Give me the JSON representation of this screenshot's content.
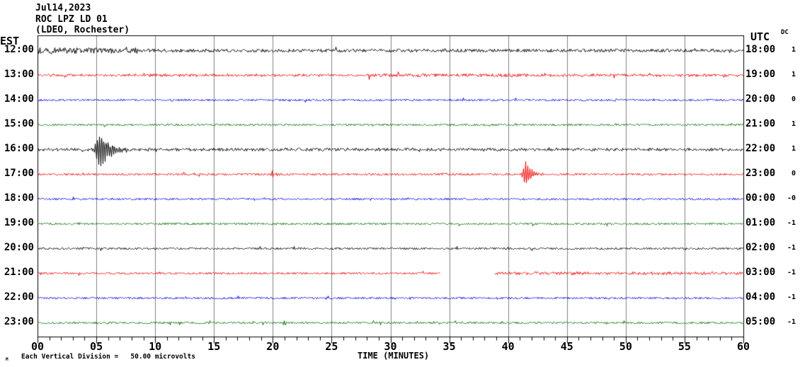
{
  "header": {
    "date": "Jul14,2023",
    "station": "ROC LPZ LD 01",
    "network": "(LDEO, Rochester)"
  },
  "axes": {
    "left_tz": "EST",
    "right_tz": "UTC",
    "dc_header": "DC",
    "xlabel": "TIME (MINUTES)"
  },
  "footer": {
    "corner_mark": "M",
    "scale_note": "Each Vertical Division =   50.00 microvolts"
  },
  "colors": {
    "frame": "#000000",
    "grid": "#808080",
    "black_trace": "#000000",
    "red_trace": "#ee0000",
    "blue_trace": "#0000dd",
    "green_trace": "#006e00"
  },
  "chart_data": {
    "type": "line",
    "title": "ROC LPZ LD 01 helicorder, Jul14,2023 (LDEO, Rochester)",
    "xlabel": "TIME (MINUTES)",
    "x_range": [
      0,
      60
    ],
    "x_ticks": [
      "00",
      "05",
      "10",
      "15",
      "20",
      "25",
      "30",
      "35",
      "40",
      "45",
      "50",
      "55",
      "60"
    ],
    "x_tick_minutes": [
      0,
      5,
      10,
      15,
      20,
      25,
      30,
      35,
      40,
      45,
      50,
      55,
      60
    ],
    "minor_tick_every_minutes": 1,
    "grid": "vertical-every-5-minutes",
    "vertical_division_microvolts": 50.0,
    "rows": [
      {
        "est": "12:00",
        "utc": "18:00",
        "dc": "1",
        "color": "#000000",
        "noise": 2.1,
        "noise_segments": [
          {
            "from": 0,
            "to": 8.5,
            "amp": 4.2
          }
        ],
        "events": [],
        "gaps": []
      },
      {
        "est": "13:00",
        "utc": "19:00",
        "dc": "1",
        "color": "#ee0000",
        "noise": 1.6,
        "noise_segments": [
          {
            "from": 28,
            "to": 41,
            "amp": 2.3
          }
        ],
        "events": [],
        "gaps": []
      },
      {
        "est": "14:00",
        "utc": "20:00",
        "dc": "0",
        "color": "#0000dd",
        "noise": 1.3,
        "noise_segments": [],
        "events": [],
        "gaps": []
      },
      {
        "est": "15:00",
        "utc": "21:00",
        "dc": "1",
        "color": "#006e00",
        "noise": 1.4,
        "noise_segments": [],
        "events": [],
        "gaps": []
      },
      {
        "est": "16:00",
        "utc": "22:00",
        "dc": "1",
        "color": "#000000",
        "noise": 1.9,
        "noise_segments": [],
        "events": [
          {
            "t": 5.3,
            "amp": 26,
            "attack": 0.28,
            "decay": 0.75,
            "freq": 5.5,
            "coda_amp": 3.0,
            "coda_len": 6.5
          }
        ],
        "gaps": []
      },
      {
        "est": "17:00",
        "utc": "23:00",
        "dc": "0",
        "color": "#ee0000",
        "noise": 1.4,
        "noise_segments": [],
        "events": [
          {
            "t": 19.95,
            "amp": 7,
            "attack": 0.08,
            "decay": 0.12,
            "freq": 5.5,
            "coda_amp": 0,
            "coda_len": 0
          },
          {
            "t": 41.5,
            "amp": 18,
            "attack": 0.2,
            "decay": 0.45,
            "freq": 5.5,
            "coda_amp": 1.2,
            "coda_len": 2.5
          }
        ],
        "gaps": []
      },
      {
        "est": "18:00",
        "utc": "00:00",
        "dc": "-0",
        "color": "#0000dd",
        "noise": 1.2,
        "noise_segments": [],
        "events": [],
        "gaps": []
      },
      {
        "est": "19:00",
        "utc": "01:00",
        "dc": "-1",
        "color": "#006e00",
        "noise": 1.4,
        "noise_segments": [],
        "events": [],
        "gaps": []
      },
      {
        "est": "20:00",
        "utc": "02:00",
        "dc": "-1",
        "color": "#000000",
        "noise": 1.5,
        "noise_segments": [],
        "events": [],
        "gaps": []
      },
      {
        "est": "21:00",
        "utc": "03:00",
        "dc": "-1",
        "color": "#ee0000",
        "noise": 1.4,
        "noise_segments": [
          {
            "from": 38.8,
            "to": 60,
            "amp": 1.9
          }
        ],
        "events": [],
        "gaps": [
          [
            34.2,
            38.8
          ]
        ]
      },
      {
        "est": "22:00",
        "utc": "04:00",
        "dc": "-1",
        "color": "#0000dd",
        "noise": 1.2,
        "noise_segments": [],
        "events": [],
        "gaps": []
      },
      {
        "est": "23:00",
        "utc": "05:00",
        "dc": "-1",
        "color": "#006e00",
        "noise": 1.4,
        "noise_segments": [],
        "events": [
          {
            "t": 21.0,
            "amp": 4,
            "attack": 0.1,
            "decay": 0.15,
            "freq": 5.5,
            "coda_amp": 0,
            "coda_len": 0
          }
        ],
        "gaps": []
      }
    ]
  }
}
